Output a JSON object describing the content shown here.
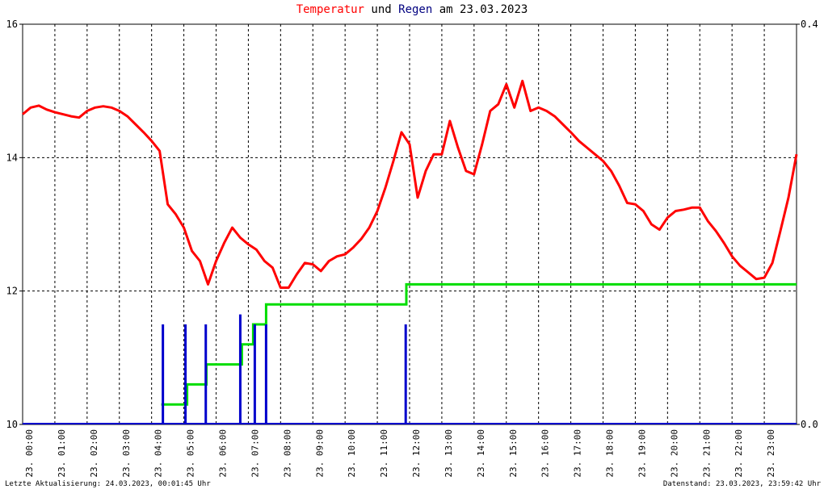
{
  "title": {
    "part1": "Temperatur",
    "part2": " und ",
    "part3": "Regen",
    "part4": " am 23.03.2023",
    "color1": "#ff0000",
    "color2": "#000000",
    "color3": "#000080"
  },
  "footer": {
    "left": "Letzte Aktualisierung: 24.03.2023, 00:01:45 Uhr",
    "right": "Datenstand: 23.03.2023, 23:59:42 Uhr"
  },
  "chart_data": {
    "type": "line",
    "grid": true,
    "colors": {
      "temperature": "#ff0000",
      "rain": "#0000cc",
      "rain_cumulative": "#00dd00",
      "axis": "#000000"
    },
    "y_left": {
      "ticks": [
        "10",
        "12",
        "14",
        "16"
      ],
      "ylim": [
        10,
        16
      ]
    },
    "y_right": {
      "ticks": [
        "0.0",
        "0.4"
      ],
      "ylim": [
        0,
        0.4
      ]
    },
    "x_ticks": [
      "23. 00:00",
      "23. 01:00",
      "23. 02:00",
      "23. 03:00",
      "23. 04:00",
      "23. 05:00",
      "23. 06:00",
      "23. 07:00",
      "23. 08:00",
      "23. 09:00",
      "23. 10:00",
      "23. 11:00",
      "23. 12:00",
      "23. 13:00",
      "23. 14:00",
      "23. 15:00",
      "23. 16:00",
      "23. 17:00",
      "23. 18:00",
      "23. 19:00",
      "23. 20:00",
      "23. 21:00",
      "23. 22:00",
      "23. 23:00"
    ],
    "xlim_hours": [
      0,
      24
    ],
    "series": [
      {
        "kind": "temperature",
        "axis": "left",
        "x_hours": [
          0,
          0.25,
          0.5,
          0.75,
          1.0,
          1.25,
          1.5,
          1.75,
          2.0,
          2.25,
          2.5,
          2.75,
          3.0,
          3.25,
          3.5,
          3.75,
          4.0,
          4.25,
          4.5,
          4.75,
          5.0,
          5.25,
          5.5,
          5.75,
          6.0,
          6.25,
          6.5,
          6.75,
          7.0,
          7.25,
          7.5,
          7.75,
          8.0,
          8.25,
          8.5,
          8.75,
          9.0,
          9.25,
          9.5,
          9.75,
          10.0,
          10.25,
          10.5,
          10.75,
          11.0,
          11.25,
          11.5,
          11.75,
          12.0,
          12.25,
          12.5,
          12.75,
          13.0,
          13.25,
          13.5,
          13.75,
          14.0,
          14.25,
          14.5,
          14.75,
          15.0,
          15.25,
          15.5,
          15.75,
          16.0,
          16.25,
          16.5,
          16.75,
          17.0,
          17.25,
          17.5,
          17.75,
          18.0,
          18.25,
          18.5,
          18.75,
          19.0,
          19.25,
          19.5,
          19.75,
          20.0,
          20.25,
          20.5,
          20.75,
          21.0,
          21.25,
          21.5,
          21.75,
          22.0,
          22.25,
          22.5,
          22.75,
          23.0,
          23.25,
          23.5,
          23.75,
          24.0
        ],
        "values": [
          14.65,
          14.75,
          14.78,
          14.72,
          14.68,
          14.65,
          14.62,
          14.6,
          14.7,
          14.75,
          14.77,
          14.75,
          14.7,
          14.62,
          14.5,
          14.38,
          14.25,
          14.1,
          13.3,
          13.15,
          12.95,
          12.6,
          12.45,
          12.1,
          12.45,
          12.72,
          12.95,
          12.8,
          12.7,
          12.62,
          12.45,
          12.35,
          12.05,
          12.05,
          12.25,
          12.42,
          12.4,
          12.3,
          12.45,
          12.52,
          12.55,
          12.65,
          12.78,
          12.95,
          13.2,
          13.55,
          13.95,
          14.38,
          14.2,
          13.4,
          13.8,
          14.05,
          14.05,
          14.55,
          14.15,
          13.8,
          13.75,
          14.2,
          14.7,
          14.8,
          15.1,
          14.75,
          15.15,
          14.7,
          14.75,
          14.7,
          14.62,
          14.5,
          14.38,
          14.25,
          14.15,
          14.05,
          13.95,
          13.8,
          13.58,
          13.32,
          13.3,
          13.2,
          13.0,
          12.92,
          13.1,
          13.2,
          13.22,
          13.25,
          13.25,
          13.05,
          12.9,
          12.72,
          12.52,
          12.38,
          12.28,
          12.18,
          12.2,
          12.42,
          12.9,
          13.4,
          14.05
        ]
      },
      {
        "kind": "rain_cumulative",
        "axis": "right",
        "x_hours": [
          4.3,
          5.1,
          5.1,
          5.7,
          5.7,
          6.8,
          6.8,
          7.15,
          7.15,
          7.55,
          7.55,
          11.9,
          11.9,
          24.0
        ],
        "values": [
          0.02,
          0.02,
          0.04,
          0.04,
          0.06,
          0.06,
          0.08,
          0.08,
          0.1,
          0.1,
          0.12,
          0.12,
          0.14,
          0.14
        ]
      },
      {
        "kind": "rain",
        "axis": "right",
        "x_hours": [
          4.35,
          5.05,
          5.68,
          6.75,
          7.2,
          7.55,
          11.88
        ],
        "values": [
          0.1,
          0.1,
          0.1,
          0.11,
          0.1,
          0.1,
          0.1
        ]
      }
    ]
  }
}
